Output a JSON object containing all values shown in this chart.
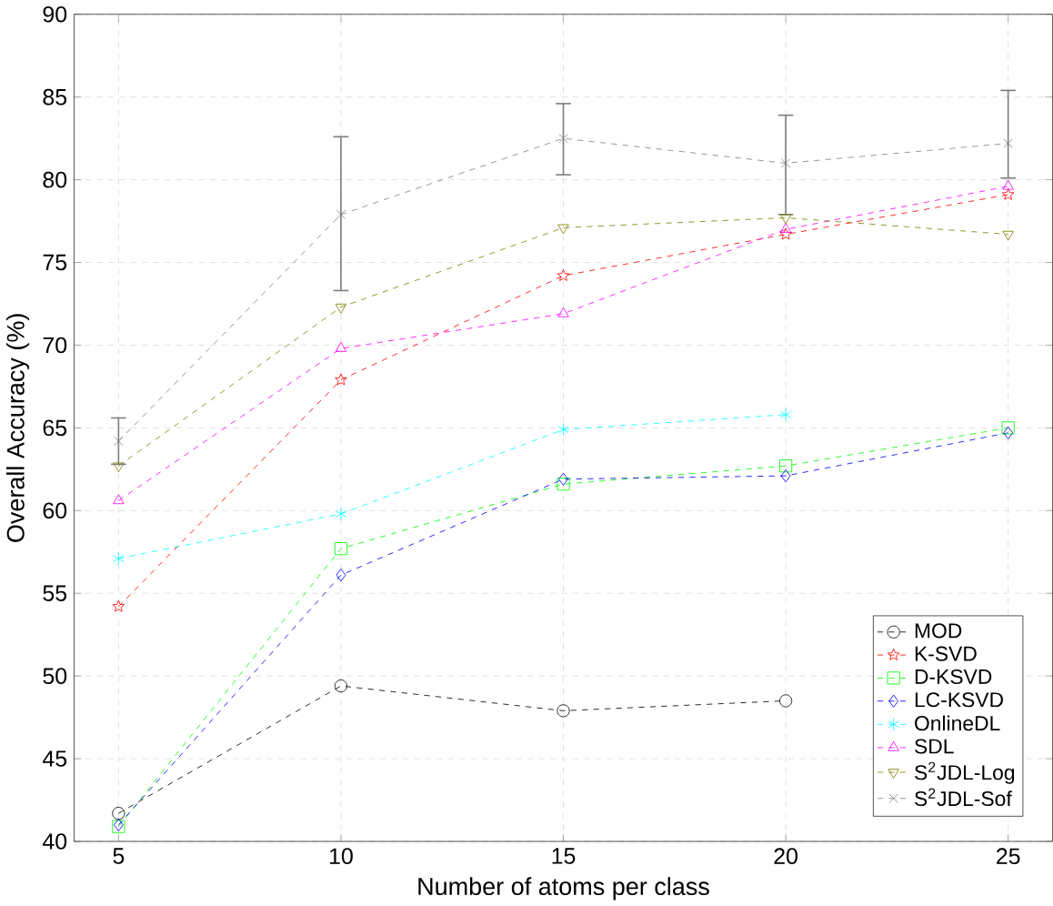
{
  "chart_data": {
    "type": "line",
    "xlabel": "Number of atoms per class",
    "ylabel": "Overall Accuracy (%)",
    "x": [
      5,
      10,
      15,
      20,
      25
    ],
    "xlim": [
      4,
      26
    ],
    "ylim": [
      40,
      90
    ],
    "xticks": [
      5,
      10,
      15,
      20,
      25
    ],
    "yticks": [
      40,
      45,
      50,
      55,
      60,
      65,
      70,
      75,
      80,
      85,
      90
    ],
    "grid": true,
    "legend": "bottom right",
    "line_style": "dashed",
    "series": [
      {
        "name": "MOD",
        "color": "#000000",
        "marker": "circle",
        "values": [
          41.7,
          49.4,
          47.9,
          48.5,
          null
        ]
      },
      {
        "name": "K-SVD",
        "color": "#ff0000",
        "marker": "star",
        "values": [
          54.2,
          67.9,
          74.2,
          76.7,
          79.1
        ]
      },
      {
        "name": "D-KSVD",
        "color": "#00ff00",
        "marker": "square",
        "values": [
          40.9,
          57.7,
          61.6,
          62.7,
          65.0
        ]
      },
      {
        "name": "LC-KSVD",
        "color": "#0000ff",
        "marker": "diamond",
        "values": [
          41.0,
          56.1,
          61.9,
          62.1,
          64.7
        ]
      },
      {
        "name": "OnlineDL",
        "color": "#00ffff",
        "marker": "cross",
        "values": [
          57.1,
          59.8,
          64.9,
          65.8,
          null
        ]
      },
      {
        "name": "SDL",
        "color": "#ff00ff",
        "marker": "triangle",
        "values": [
          60.6,
          69.8,
          71.9,
          77.0,
          79.6
        ]
      },
      {
        "name": "S$^{2}$JDL-Log",
        "color": "#808000",
        "marker": "triangle down",
        "values": [
          62.7,
          72.3,
          77.1,
          77.7,
          76.7
        ]
      },
      {
        "name": "S$^{2}$JDL-Sof",
        "color": "#808080",
        "marker": "cross",
        "values": [
          64.2,
          77.9,
          82.5,
          81.0,
          82.2
        ],
        "errors": [
          [
            62.8,
            65.6
          ],
          [
            73.3,
            82.6
          ],
          [
            80.3,
            84.6
          ],
          [
            77.9,
            83.9
          ],
          [
            80.1,
            85.4
          ]
        ]
      }
    ]
  }
}
